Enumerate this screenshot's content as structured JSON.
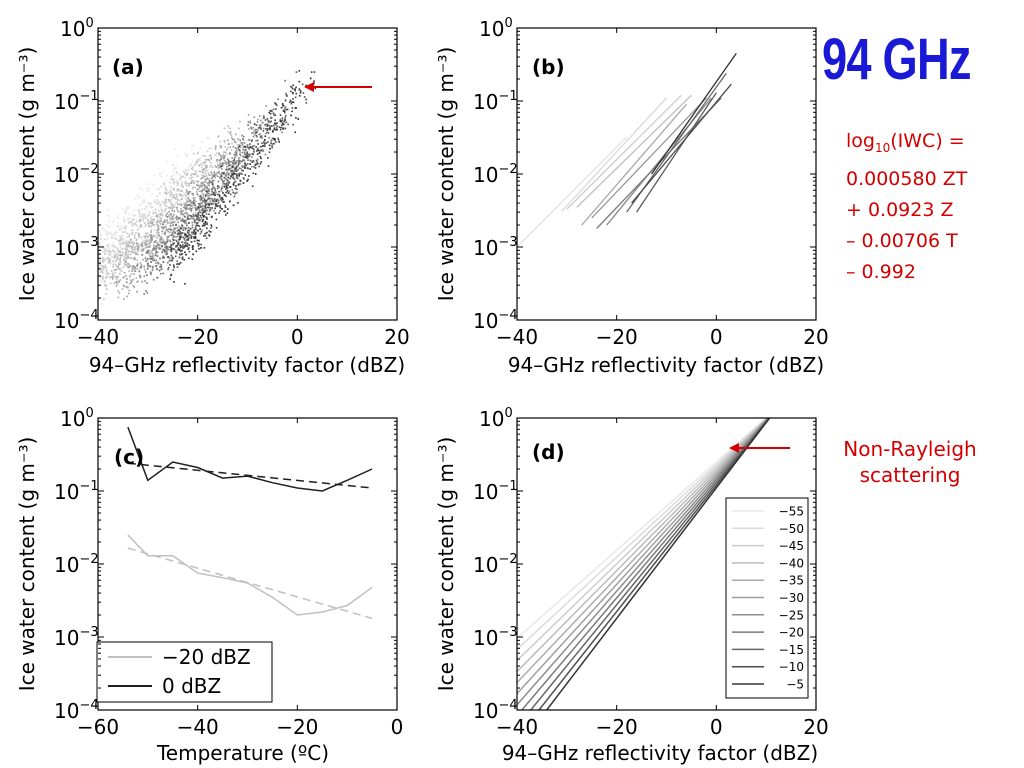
{
  "title": "94 GHz",
  "formula": {
    "line1_prefix": "log",
    "line1_sub": "10",
    "line1_suffix": "(IWC) =",
    "line2": "0.000580 ZT",
    "line3": "+ 0.0923 Z",
    "line4": "– 0.00706 T",
    "line5": "– 0.992"
  },
  "annotation": {
    "line1": "Non-Rayleigh",
    "line2": "scattering"
  },
  "colors": {
    "title": "#1a1ad6",
    "annotation": "#d40000",
    "arrow": "#d40000"
  },
  "chart_data": [
    {
      "panel": "(a)",
      "type": "scatter",
      "xlabel": "94–GHz reflectivity factor (dBZ)",
      "ylabel": "Ice water content (g m⁻³)",
      "xlim": [
        -40,
        20
      ],
      "ylim": [
        0.0001,
        1
      ],
      "yscale": "log",
      "xticks": [
        "−40",
        "−20",
        "0",
        "20"
      ],
      "yticks": [
        {
          "base": "10",
          "exp": "0"
        },
        {
          "base": "10",
          "exp": "−1"
        },
        {
          "base": "10",
          "exp": "−2"
        },
        {
          "base": "10",
          "exp": "−3"
        },
        {
          "base": "10",
          "exp": "−4"
        }
      ],
      "note": "dense scatter of observations, grey shade by temperature",
      "arrow_at": [
        2,
        0.16
      ]
    },
    {
      "panel": "(b)",
      "type": "line",
      "xlabel": "94–GHz reflectivity factor (dBZ)",
      "ylabel": "Ice water content (g m⁻³)",
      "xlim": [
        -40,
        20
      ],
      "ylim": [
        0.0001,
        1
      ],
      "yscale": "log",
      "xticks": [
        "−40",
        "−20",
        "0",
        "20"
      ],
      "yticks": [
        {
          "base": "10",
          "exp": "0"
        },
        {
          "base": "10",
          "exp": "−1"
        },
        {
          "base": "10",
          "exp": "−2"
        },
        {
          "base": "10",
          "exp": "−3"
        },
        {
          "base": "10",
          "exp": "−4"
        }
      ],
      "series": [
        {
          "gray": "#e4e4e4",
          "x": [
            -40,
            -18
          ],
          "y": [
            0.001,
            0.032
          ]
        },
        {
          "gray": "#d8d8d8",
          "x": [
            -31,
            -10
          ],
          "y": [
            0.0031,
            0.11
          ]
        },
        {
          "gray": "#cccccc",
          "x": [
            -30,
            -7
          ],
          "y": [
            0.0033,
            0.12
          ]
        },
        {
          "gray": "#bcbcbc",
          "x": [
            -28,
            -5
          ],
          "y": [
            0.0035,
            0.12
          ]
        },
        {
          "gray": "#a8a8a8",
          "x": [
            -27,
            -6
          ],
          "y": [
            0.002,
            0.09
          ]
        },
        {
          "gray": "#989898",
          "x": [
            -25,
            -2
          ],
          "y": [
            0.0025,
            0.11
          ]
        },
        {
          "gray": "#888888",
          "x": [
            -22,
            -1
          ],
          "y": [
            0.002,
            0.11
          ]
        },
        {
          "gray": "#7a7a7a",
          "x": [
            -24,
            1
          ],
          "y": [
            0.0018,
            0.11
          ]
        },
        {
          "gray": "#6a6a6a",
          "x": [
            -18,
            2
          ],
          "y": [
            0.003,
            0.24
          ]
        },
        {
          "gray": "#5a5a5a",
          "x": [
            -16,
            0
          ],
          "y": [
            0.003,
            0.13
          ]
        },
        {
          "gray": "#4a4a4a",
          "x": [
            -17,
            3
          ],
          "y": [
            0.004,
            0.17
          ]
        },
        {
          "gray": "#303030",
          "x": [
            -13,
            4
          ],
          "y": [
            0.01,
            0.45
          ]
        }
      ]
    },
    {
      "panel": "(c)",
      "type": "line",
      "xlabel": "Temperature (ºC)",
      "ylabel": "Ice water content (g m⁻³)",
      "xlim": [
        -60,
        0
      ],
      "ylim": [
        0.0001,
        1
      ],
      "yscale": "log",
      "xticks": [
        "−60",
        "−40",
        "−20",
        "0"
      ],
      "yticks": [
        {
          "base": "10",
          "exp": "0"
        },
        {
          "base": "10",
          "exp": "−1"
        },
        {
          "base": "10",
          "exp": "−2"
        },
        {
          "base": "10",
          "exp": "−3"
        },
        {
          "base": "10",
          "exp": "−4"
        }
      ],
      "legend": [
        "−20 dBZ",
        "0 dBZ"
      ],
      "legend_position": "lower-left",
      "series": [
        {
          "name": "−20 dBZ",
          "style": "solid",
          "gray": "#c0c0c0",
          "x": [
            -54,
            -50,
            -45,
            -40,
            -35,
            -30,
            -25,
            -20,
            -15,
            -10,
            -5
          ],
          "y": [
            0.025,
            0.013,
            0.013,
            0.0075,
            0.0065,
            0.0055,
            0.0035,
            0.002,
            0.0022,
            0.0027,
            0.0048
          ]
        },
        {
          "name": "0 dBZ",
          "style": "solid",
          "gray": "#202020",
          "x": [
            -54,
            -50,
            -45,
            -40,
            -35,
            -30,
            -25,
            -20,
            -15,
            -10,
            -5
          ],
          "y": [
            0.75,
            0.14,
            0.25,
            0.21,
            0.15,
            0.16,
            0.13,
            0.11,
            0.1,
            0.14,
            0.2
          ]
        },
        {
          "style": "dashed",
          "gray": "#c0c0c0",
          "x": [
            -54,
            -5
          ],
          "y": [
            0.0165,
            0.0018
          ]
        },
        {
          "style": "dashed",
          "gray": "#202020",
          "x": [
            -54,
            -5
          ],
          "y": [
            0.24,
            0.11
          ]
        }
      ]
    },
    {
      "panel": "(d)",
      "type": "line",
      "xlabel": "94–GHz reflectivity factor (dBZ)",
      "ylabel": "Ice water content (g m⁻³)",
      "xlim": [
        -40,
        20
      ],
      "ylim": [
        0.0001,
        1
      ],
      "yscale": "log",
      "xticks": [
        "−40",
        "−20",
        "0",
        "20"
      ],
      "yticks": [
        {
          "base": "10",
          "exp": "0"
        },
        {
          "base": "10",
          "exp": "−1"
        },
        {
          "base": "10",
          "exp": "−2"
        },
        {
          "base": "10",
          "exp": "−3"
        },
        {
          "base": "10",
          "exp": "−4"
        }
      ],
      "legend": [
        "−55",
        "−50",
        "−45",
        "−40",
        "−35",
        "−30",
        "−25",
        "−20",
        "−15",
        "−10",
        "−5"
      ],
      "legend_position": "lower-right",
      "temperatures": [
        -55,
        -50,
        -45,
        -40,
        -35,
        -30,
        -25,
        -20,
        -15,
        -10,
        -5
      ],
      "grays": [
        "#e8e8e8",
        "#dadada",
        "#cbcbcb",
        "#bcbcbc",
        "#adadad",
        "#9e9e9e",
        "#8c8c8c",
        "#7a7a7a",
        "#666666",
        "#4e4e4e",
        "#333333"
      ],
      "arrow_at": [
        3,
        0.32
      ]
    }
  ]
}
